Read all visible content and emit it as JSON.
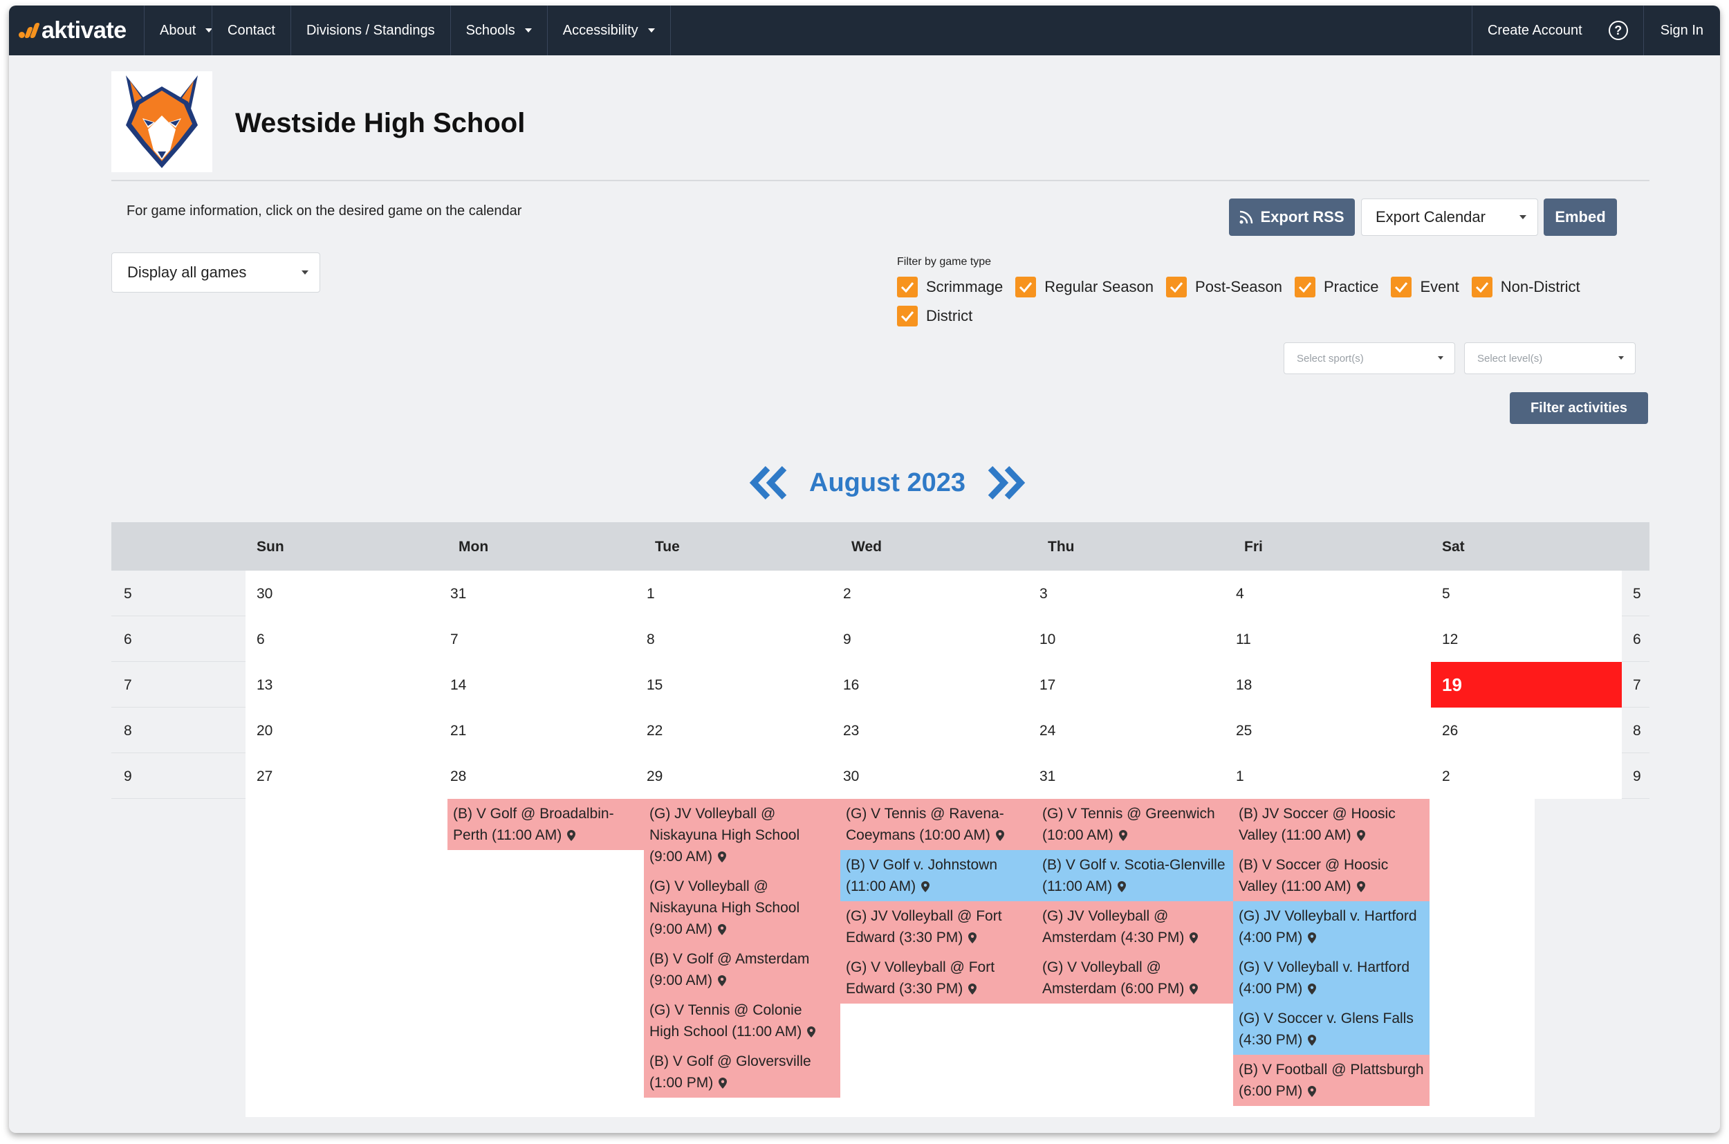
{
  "nav": {
    "brand": "aktivate",
    "items": [
      {
        "label": "About",
        "dropdown": true
      },
      {
        "label": "Contact",
        "dropdown": false
      },
      {
        "label": "Divisions / Standings",
        "dropdown": false
      },
      {
        "label": "Schools",
        "dropdown": true
      },
      {
        "label": "Accessibility",
        "dropdown": true
      }
    ],
    "create_account": "Create Account",
    "help_icon": "help-circle-icon",
    "sign_in": "Sign In"
  },
  "school": {
    "name": "Westside High School",
    "logo_icon": "fox-mascot-icon"
  },
  "info_text": "For game information, click on the desired game on the calendar",
  "actions": {
    "export_rss": "Export RSS",
    "export_calendar": "Export Calendar",
    "embed": "Embed"
  },
  "display_select": "Display all games",
  "filters": {
    "label": "Filter by game type",
    "options": [
      "Scrimmage",
      "Regular Season",
      "Post-Season",
      "Practice",
      "Event",
      "Non-District",
      "District"
    ],
    "sport_placeholder": "Select sport(s)",
    "level_placeholder": "Select level(s)",
    "filter_button": "Filter activities"
  },
  "calendar": {
    "month": "August 2023",
    "days": [
      "Sun",
      "Mon",
      "Tue",
      "Wed",
      "Thu",
      "Fri",
      "Sat"
    ],
    "weeks": [
      {
        "week": "5",
        "dates": [
          "30",
          "31",
          "1",
          "2",
          "3",
          "4",
          "5"
        ]
      },
      {
        "week": "6",
        "dates": [
          "6",
          "7",
          "8",
          "9",
          "10",
          "11",
          "12"
        ]
      },
      {
        "week": "7",
        "dates": [
          "13",
          "14",
          "15",
          "16",
          "17",
          "18",
          "19"
        ]
      },
      {
        "week": "8",
        "dates": [
          "20",
          "21",
          "22",
          "23",
          "24",
          "25",
          "26"
        ]
      },
      {
        "week": "9",
        "dates": [
          "27",
          "28",
          "29",
          "30",
          "31",
          "1",
          "2"
        ]
      }
    ],
    "today": "19",
    "events": {
      "mon": [
        {
          "text": "(B) V Golf @ Broadalbin-Perth (11:00 AM)",
          "type": "away"
        }
      ],
      "tue": [
        {
          "text": "(G) JV Volleyball @ Niskayuna High School (9:00 AM)",
          "type": "away"
        },
        {
          "text": "(G) V Volleyball @ Niskayuna High School (9:00 AM)",
          "type": "away"
        },
        {
          "text": "(B) V Golf @ Amsterdam (9:00 AM)",
          "type": "away"
        },
        {
          "text": "(G) V Tennis @ Colonie High School (11:00 AM)",
          "type": "away"
        },
        {
          "text": "(B) V Golf @ Gloversville (1:00 PM)",
          "type": "away"
        }
      ],
      "wed": [
        {
          "text": "(G) V Tennis @ Ravena-Coeymans (10:00 AM)",
          "type": "away"
        },
        {
          "text": "(B) V Golf v. Johnstown (11:00 AM)",
          "type": "home"
        },
        {
          "text": "(G) JV Volleyball @ Fort Edward (3:30 PM)",
          "type": "away"
        },
        {
          "text": "(G) V Volleyball @ Fort Edward (3:30 PM)",
          "type": "away"
        }
      ],
      "thu": [
        {
          "text": "(G) V Tennis @ Greenwich (10:00 AM)",
          "type": "away"
        },
        {
          "text": "(B) V Golf v. Scotia-Glenville (11:00 AM)",
          "type": "home"
        },
        {
          "text": "(G) JV Volleyball @ Amsterdam (4:30 PM)",
          "type": "away"
        },
        {
          "text": "(G) V Volleyball @ Amsterdam (6:00 PM)",
          "type": "away"
        }
      ],
      "fri": [
        {
          "text": "(B) JV Soccer @ Hoosic Valley (11:00 AM)",
          "type": "away"
        },
        {
          "text": "(B) V Soccer @ Hoosic Valley (11:00 AM)",
          "type": "away"
        },
        {
          "text": "(G) JV Volleyball v. Hartford (4:00 PM)",
          "type": "home"
        },
        {
          "text": "(G) V Volleyball v. Hartford (4:00 PM)",
          "type": "home"
        },
        {
          "text": "(G) V Soccer v. Glens Falls (4:30 PM)",
          "type": "home"
        },
        {
          "text": "(B) V Football @ Plattsburgh (6:00 PM)",
          "type": "away"
        }
      ]
    },
    "colors": {
      "away": "#f6a9aa",
      "home": "#8fcbf4",
      "today": "#ff1a1a",
      "accent": "#f7931e",
      "nav": "#1f2a38",
      "button": "#4f6480",
      "month": "#2f7ac7"
    }
  }
}
